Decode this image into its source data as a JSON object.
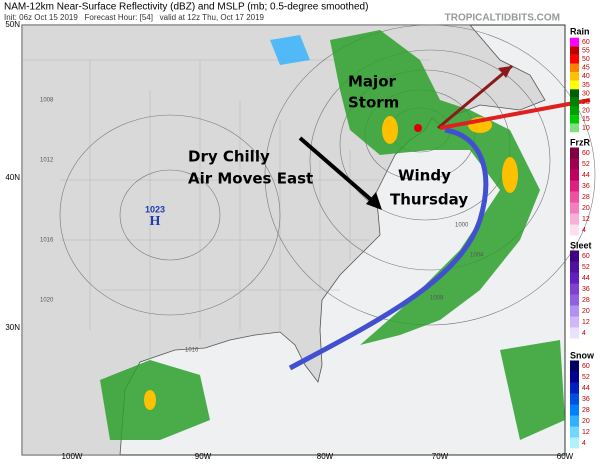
{
  "header": {
    "title": "NAM-12km Near-Surface Reflectivity (dBZ) and MSLP (mb; 0.5-degree smoothed)",
    "subtitle": "Init: 06z Oct 15 2019   Forecast Hour: [54]   valid at 12z Thu, Oct 17 2019",
    "credit": "TROPICALTIDBITS.COM"
  },
  "map": {
    "lat_labels": [
      "50N",
      "40N",
      "30N"
    ],
    "lon_labels": [
      "100W",
      "90W",
      "80W",
      "70W",
      "60W"
    ],
    "isobar_labels": [
      "1008",
      "1012",
      "1016",
      "1020",
      "1000",
      "1004",
      "1008",
      "1016"
    ],
    "annotations": {
      "storm": [
        "Major",
        "Storm"
      ],
      "dry": [
        "Dry Chilly",
        "Air Moves East"
      ],
      "windy": [
        "Windy",
        "Thursday"
      ]
    },
    "high": {
      "pressure": "1023",
      "label": "H"
    }
  },
  "legend": [
    {
      "title": "Rain",
      "ticks": [
        60,
        55,
        50,
        45,
        40,
        35,
        30,
        25,
        20,
        15,
        10
      ],
      "colors": [
        "#ff00ff",
        "#c00000",
        "#ff0000",
        "#ff8000",
        "#ffc000",
        "#ffff00",
        "#006000",
        "#008000",
        "#00a000",
        "#00c800",
        "#80e080"
      ]
    },
    {
      "title": "FrzR",
      "ticks": [
        60,
        52,
        44,
        36,
        28,
        20,
        12,
        4
      ],
      "colors": [
        "#800040",
        "#a00050",
        "#c00060",
        "#e02080",
        "#f050a0",
        "#f080c0",
        "#f8b0d8",
        "#fce0f0"
      ]
    },
    {
      "title": "Sleet",
      "ticks": [
        60,
        52,
        44,
        36,
        28,
        20,
        12,
        4
      ],
      "colors": [
        "#400080",
        "#5010a0",
        "#6020c0",
        "#8040d0",
        "#9060e0",
        "#b090f0",
        "#d0b8f8",
        "#ece0ff"
      ]
    },
    {
      "title": "Snow",
      "ticks": [
        60,
        52,
        44,
        36,
        28,
        20,
        12,
        4
      ],
      "colors": [
        "#000060",
        "#000090",
        "#0020c0",
        "#0050e0",
        "#0080ff",
        "#30b0ff",
        "#70d8ff",
        "#b0f0ff"
      ]
    }
  ]
}
